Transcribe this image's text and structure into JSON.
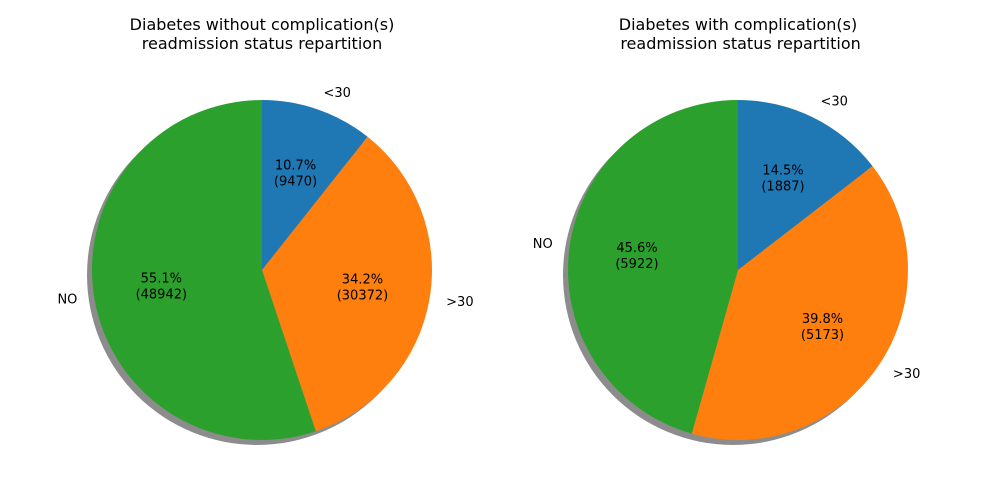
{
  "chart_data": [
    {
      "type": "pie",
      "title": "Diabetes without complication(s)\nreadmission status repartition",
      "slices": [
        {
          "label": "<30",
          "value": 9470,
          "percent": "10.7%",
          "color": "#1f77b4"
        },
        {
          "label": ">30",
          "value": 30372,
          "percent": "34.2%",
          "color": "#ff7f0e"
        },
        {
          "label": "NO",
          "value": 48942,
          "percent": "55.1%",
          "color": "#2ca02c"
        }
      ],
      "start_angle_deg": 90,
      "direction": "clockwise",
      "shadow": true
    },
    {
      "type": "pie",
      "title": "Diabetes with complication(s)\n readmission status repartition",
      "slices": [
        {
          "label": "<30",
          "value": 1887,
          "percent": "14.5%",
          "color": "#1f77b4"
        },
        {
          "label": ">30",
          "value": 5173,
          "percent": "39.8%",
          "color": "#ff7f0e"
        },
        {
          "label": "NO",
          "value": 5922,
          "percent": "45.6%",
          "color": "#2ca02c"
        }
      ],
      "start_angle_deg": 90,
      "direction": "clockwise",
      "shadow": true
    }
  ]
}
